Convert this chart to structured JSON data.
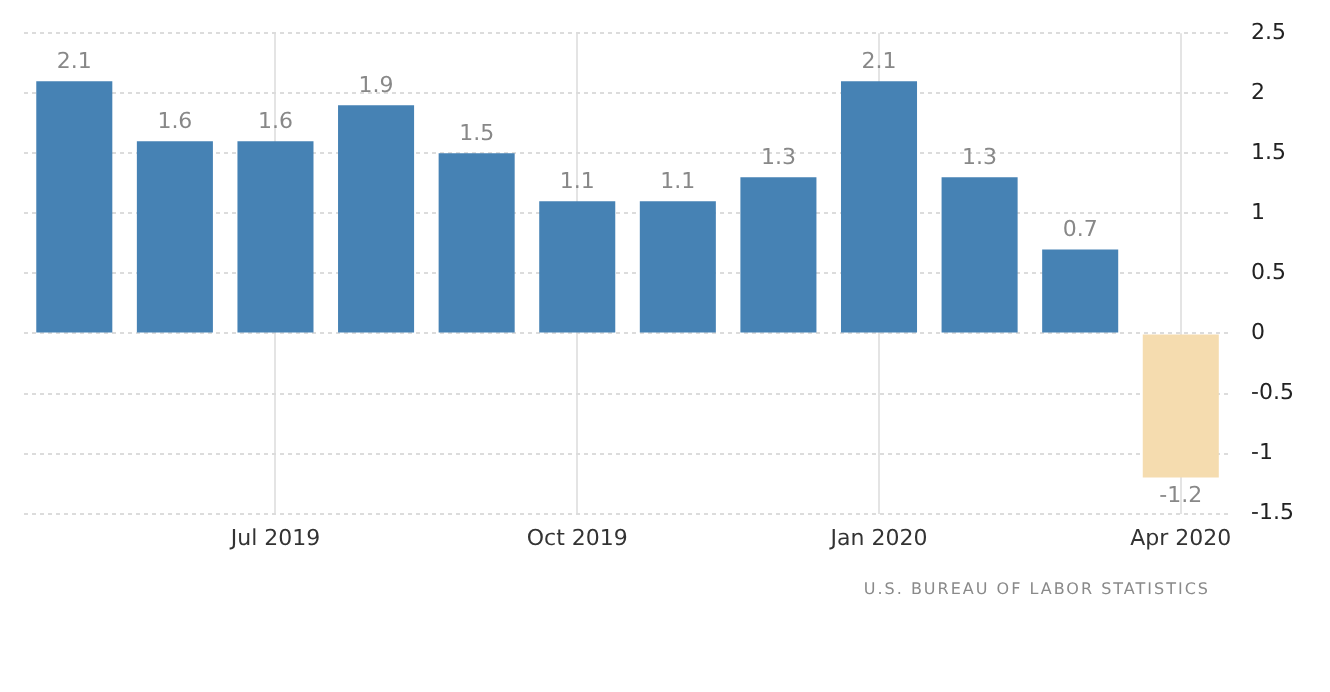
{
  "chart_data": {
    "type": "bar",
    "categories": [
      null,
      null,
      "Jul 2019",
      null,
      null,
      "Oct 2019",
      null,
      null,
      "Jan 2020",
      null,
      null,
      "Apr 2020"
    ],
    "values": [
      2.1,
      1.6,
      1.6,
      1.9,
      1.5,
      1.1,
      1.1,
      1.3,
      2.1,
      1.3,
      0.7,
      -1.2
    ],
    "colors": [
      "#4682b4",
      "#4682b4",
      "#4682b4",
      "#4682b4",
      "#4682b4",
      "#4682b4",
      "#4682b4",
      "#4682b4",
      "#4682b4",
      "#4682b4",
      "#4682b4",
      "#f5dcaf"
    ],
    "ylim": [
      -1.5,
      2.5
    ],
    "yticks": [
      -1.5,
      -1,
      -0.5,
      0,
      0.5,
      1,
      1.5,
      2,
      2.5
    ],
    "grid": true,
    "data_labels": true,
    "annotations": [
      "U.S. BUREAU OF LABOR STATISTICS"
    ]
  }
}
